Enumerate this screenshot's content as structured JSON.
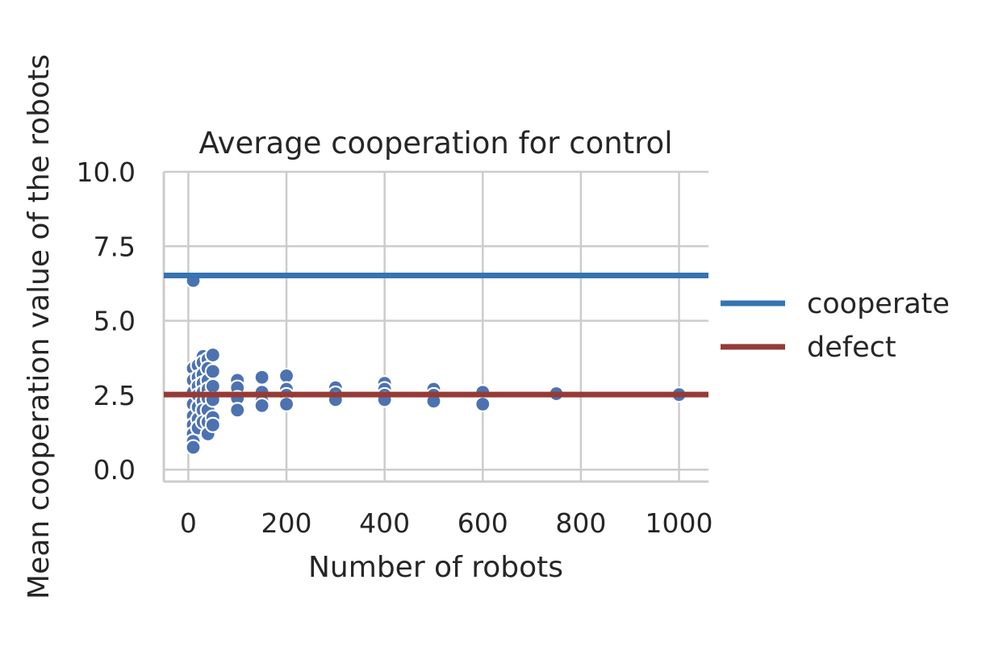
{
  "chart_data": {
    "type": "scatter",
    "title": "Average cooperation for control",
    "xlabel": "Number of robots",
    "ylabel": "Mean cooperation value of the robots",
    "xlim": [
      -50,
      1060
    ],
    "ylim": [
      -0.4,
      10.0
    ],
    "xticks": [
      0,
      200,
      400,
      600,
      800,
      1000
    ],
    "xtick_labels": [
      "0",
      "200",
      "400",
      "600",
      "800",
      "1000"
    ],
    "yticks": [
      0.0,
      2.5,
      5.0,
      7.5,
      10.0
    ],
    "ytick_labels": [
      "0.0",
      "2.5",
      "5.0",
      "7.5",
      "10.0"
    ],
    "grid": true,
    "legend_position": "right",
    "point_color": "#4c72b0",
    "series": [
      {
        "name": "cooperate",
        "kind": "hline",
        "y": 6.52,
        "color": "#3574b2"
      },
      {
        "name": "defect",
        "kind": "hline",
        "y": 2.52,
        "color": "#953b35"
      }
    ],
    "points": [
      {
        "x": 10,
        "y": 6.35
      },
      {
        "x": 10,
        "y": 3.4
      },
      {
        "x": 10,
        "y": 3.0
      },
      {
        "x": 10,
        "y": 2.6
      },
      {
        "x": 10,
        "y": 2.2
      },
      {
        "x": 10,
        "y": 1.8
      },
      {
        "x": 10,
        "y": 1.5
      },
      {
        "x": 10,
        "y": 1.2
      },
      {
        "x": 10,
        "y": 0.95
      },
      {
        "x": 10,
        "y": 0.75
      },
      {
        "x": 20,
        "y": 3.5
      },
      {
        "x": 20,
        "y": 3.1
      },
      {
        "x": 20,
        "y": 2.8
      },
      {
        "x": 20,
        "y": 2.5
      },
      {
        "x": 20,
        "y": 2.1
      },
      {
        "x": 20,
        "y": 1.7
      },
      {
        "x": 20,
        "y": 1.4
      },
      {
        "x": 30,
        "y": 3.8
      },
      {
        "x": 30,
        "y": 3.6
      },
      {
        "x": 30,
        "y": 3.2
      },
      {
        "x": 30,
        "y": 2.9
      },
      {
        "x": 30,
        "y": 2.6
      },
      {
        "x": 30,
        "y": 2.3
      },
      {
        "x": 30,
        "y": 2.0
      },
      {
        "x": 30,
        "y": 1.6
      },
      {
        "x": 40,
        "y": 3.7
      },
      {
        "x": 40,
        "y": 3.4
      },
      {
        "x": 40,
        "y": 3.0
      },
      {
        "x": 40,
        "y": 2.7
      },
      {
        "x": 40,
        "y": 2.4
      },
      {
        "x": 40,
        "y": 2.0
      },
      {
        "x": 40,
        "y": 1.6
      },
      {
        "x": 40,
        "y": 1.2
      },
      {
        "x": 50,
        "y": 3.85
      },
      {
        "x": 50,
        "y": 3.3
      },
      {
        "x": 50,
        "y": 2.8
      },
      {
        "x": 50,
        "y": 2.35
      },
      {
        "x": 50,
        "y": 1.75
      },
      {
        "x": 50,
        "y": 1.5
      },
      {
        "x": 100,
        "y": 3.0
      },
      {
        "x": 100,
        "y": 2.75
      },
      {
        "x": 100,
        "y": 2.4
      },
      {
        "x": 100,
        "y": 2.0
      },
      {
        "x": 150,
        "y": 3.1
      },
      {
        "x": 150,
        "y": 2.6
      },
      {
        "x": 150,
        "y": 2.3
      },
      {
        "x": 150,
        "y": 2.15
      },
      {
        "x": 200,
        "y": 3.15
      },
      {
        "x": 200,
        "y": 2.7
      },
      {
        "x": 200,
        "y": 2.5
      },
      {
        "x": 200,
        "y": 2.2
      },
      {
        "x": 300,
        "y": 2.75
      },
      {
        "x": 300,
        "y": 2.55
      },
      {
        "x": 300,
        "y": 2.35
      },
      {
        "x": 400,
        "y": 2.9
      },
      {
        "x": 400,
        "y": 2.7
      },
      {
        "x": 400,
        "y": 2.5
      },
      {
        "x": 400,
        "y": 2.35
      },
      {
        "x": 500,
        "y": 2.7
      },
      {
        "x": 500,
        "y": 2.5
      },
      {
        "x": 500,
        "y": 2.3
      },
      {
        "x": 600,
        "y": 2.6
      },
      {
        "x": 600,
        "y": 2.2
      },
      {
        "x": 750,
        "y": 2.55
      },
      {
        "x": 1000,
        "y": 2.52
      }
    ]
  }
}
